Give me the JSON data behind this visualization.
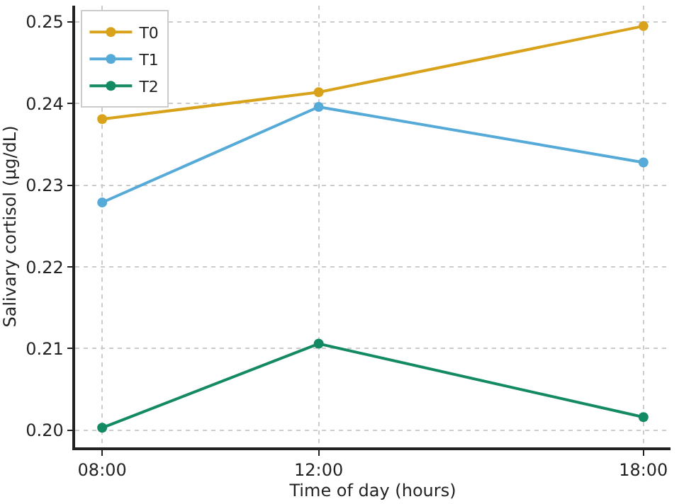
{
  "chart_data": {
    "type": "line",
    "xlabel": "Time of day (hours)",
    "ylabel": "Salivary cortisol (µg/dL)",
    "x": [
      8,
      12,
      18
    ],
    "xlim": [
      7.5,
      18.5
    ],
    "xticks": [
      {
        "value": 8,
        "label": "08:00"
      },
      {
        "value": 12,
        "label": "12:00"
      },
      {
        "value": 18,
        "label": "18:00"
      }
    ],
    "ylim": [
      0.1979,
      0.252
    ],
    "yticks": [
      {
        "value": 0.2,
        "label": "0.20"
      },
      0.21,
      0.22,
      0.23,
      0.24,
      0.25
    ],
    "grid": true,
    "legend": "top left",
    "marker": "circle",
    "line_style": "solid",
    "series": [
      {
        "name": "T0",
        "color": "#d9a21b",
        "values": [
          0.2381,
          0.2414,
          0.2495
        ]
      },
      {
        "name": "T1",
        "color": "#56aad8",
        "values": [
          0.2279,
          0.2396,
          0.2328
        ]
      },
      {
        "name": "T2",
        "color": "#138a63",
        "values": [
          0.2003,
          0.2106,
          0.2016
        ]
      }
    ]
  }
}
